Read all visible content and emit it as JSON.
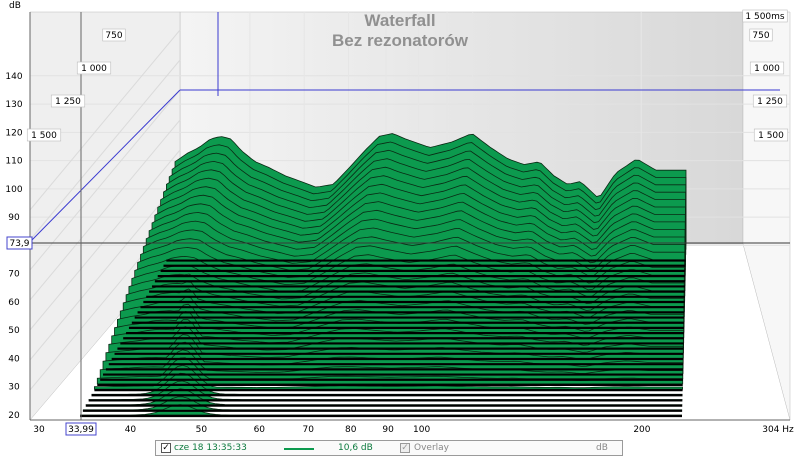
{
  "chart_data": {
    "type": "area",
    "title": [
      "Waterfall",
      "Bez rezonatorów"
    ],
    "y_unit": "dB",
    "x_unit": "Hz",
    "ylim": [
      20,
      145
    ],
    "y_ticks": [
      "140",
      "130",
      "120",
      "110",
      "100",
      "90",
      "80",
      "70",
      "60",
      "50",
      "40",
      "30",
      "20"
    ],
    "x_ticks": [
      "30",
      "40",
      "50",
      "60",
      "70",
      "80",
      "90",
      "100",
      "200",
      "304 Hz"
    ],
    "time_ticks_left": [
      "750",
      "1 000",
      "1 250",
      "1 500"
    ],
    "time_ticks_right": [
      "1 500ms",
      "750",
      "1 000",
      "1 250",
      "1 500"
    ],
    "cursor_y_label": "73,9",
    "cursor_x_label": "33,99",
    "fill_color": "#0c9a4e",
    "slice_count": 34,
    "back_slice_db": [
      [
        40,
        103
      ],
      [
        42,
        106
      ],
      [
        44,
        108
      ],
      [
        46,
        111
      ],
      [
        48,
        112
      ],
      [
        50,
        111
      ],
      [
        52,
        107
      ],
      [
        55,
        103
      ],
      [
        58,
        101
      ],
      [
        62,
        98
      ],
      [
        66,
        96
      ],
      [
        70,
        94
      ],
      [
        75,
        95
      ],
      [
        80,
        101
      ],
      [
        85,
        107
      ],
      [
        90,
        112
      ],
      [
        95,
        113
      ],
      [
        100,
        111
      ],
      [
        110,
        108
      ],
      [
        120,
        110
      ],
      [
        130,
        113
      ],
      [
        140,
        108
      ],
      [
        150,
        104
      ],
      [
        160,
        102
      ],
      [
        170,
        103
      ],
      [
        180,
        98
      ],
      [
        190,
        95
      ],
      [
        200,
        96
      ],
      [
        215,
        90
      ],
      [
        230,
        99
      ],
      [
        250,
        104
      ],
      [
        270,
        100
      ],
      [
        304,
        100
      ]
    ]
  },
  "legend": {
    "series_label": "cze 18 13:35:33",
    "series_color": "#0c9a4e",
    "value": "10,6 dB",
    "overlay_label": "Overlay",
    "unit": "dB"
  }
}
